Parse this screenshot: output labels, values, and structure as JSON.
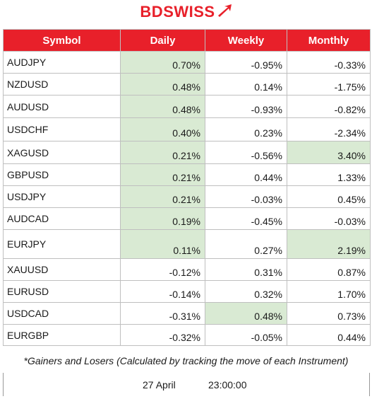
{
  "brand": {
    "part1": "BD",
    "part2": "SWISS",
    "accent": "#e8202a"
  },
  "headers": [
    "Symbol",
    "Daily",
    "Weekly",
    "Monthly"
  ],
  "rows": [
    {
      "symbol": "AUDJPY",
      "daily": "0.70%",
      "weekly": "-0.95%",
      "monthly": "-0.33%",
      "hl": [
        true,
        false,
        false
      ]
    },
    {
      "symbol": "NZDUSD",
      "daily": "0.48%",
      "weekly": "0.14%",
      "monthly": "-1.75%",
      "hl": [
        true,
        false,
        false
      ]
    },
    {
      "symbol": "AUDUSD",
      "daily": "0.48%",
      "weekly": "-0.93%",
      "monthly": "-0.82%",
      "hl": [
        true,
        false,
        false
      ]
    },
    {
      "symbol": "USDCHF",
      "daily": "0.40%",
      "weekly": "0.23%",
      "monthly": "-2.34%",
      "hl": [
        true,
        false,
        false
      ]
    },
    {
      "symbol": "XAGUSD",
      "daily": "0.21%",
      "weekly": "-0.56%",
      "monthly": "3.40%",
      "hl": [
        true,
        false,
        true
      ]
    },
    {
      "symbol": "GBPUSD",
      "daily": "0.21%",
      "weekly": "0.44%",
      "monthly": "1.33%",
      "hl": [
        true,
        false,
        false
      ]
    },
    {
      "symbol": "USDJPY",
      "daily": "0.21%",
      "weekly": "-0.03%",
      "monthly": "0.45%",
      "hl": [
        true,
        false,
        false
      ]
    },
    {
      "symbol": "AUDCAD",
      "daily": "0.19%",
      "weekly": "-0.45%",
      "monthly": "-0.03%",
      "hl": [
        true,
        false,
        false
      ]
    },
    {
      "symbol": "EURJPY",
      "daily": "0.11%",
      "weekly": "0.27%",
      "monthly": "2.19%",
      "hl": [
        true,
        false,
        true
      ]
    },
    {
      "symbol": "XAUUSD",
      "daily": "-0.12%",
      "weekly": "0.31%",
      "monthly": "0.87%",
      "hl": [
        false,
        false,
        false
      ]
    },
    {
      "symbol": "EURUSD",
      "daily": "-0.14%",
      "weekly": "0.32%",
      "monthly": "1.70%",
      "hl": [
        false,
        false,
        false
      ]
    },
    {
      "symbol": "USDCAD",
      "daily": "-0.31%",
      "weekly": "0.48%",
      "monthly": "0.73%",
      "hl": [
        false,
        true,
        false
      ]
    },
    {
      "symbol": "EURGBP",
      "daily": "-0.32%",
      "weekly": "-0.05%",
      "monthly": "0.44%",
      "hl": [
        false,
        false,
        false
      ]
    }
  ],
  "footnote": "*Gainers and Losers (Calculated by tracking the move of each Instrument)",
  "timestamp": {
    "date": "27 April",
    "time": "23:00:00"
  }
}
